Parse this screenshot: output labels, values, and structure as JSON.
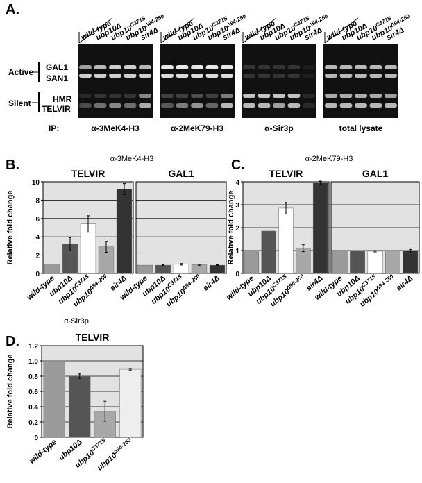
{
  "panel_a": {
    "label": "A.",
    "lanes": [
      "wild-type",
      "ubp10Δ",
      "ubp10",
      "ubp10",
      "sir4Δ"
    ],
    "lane_superscripts": [
      null,
      null,
      "C371S",
      "Δ94-250",
      null
    ],
    "bands": [
      "GAL1",
      "SAN1",
      "HMR",
      "TELVIR"
    ],
    "groups": [
      "Active",
      "Silent"
    ],
    "ip_label": "IP:",
    "ip_names": [
      "α-3MeK4-H3",
      "α-2MeK79-H3",
      "α-Sir3p",
      "total lysate"
    ]
  },
  "chart_data": [
    {
      "type": "bar",
      "label": "B.",
      "title": "α-3MeK4-H3",
      "y_label": "Relative fold change",
      "ylim": [
        0,
        10
      ],
      "yticks": [
        0,
        2,
        4,
        6,
        8,
        10
      ],
      "grid": true,
      "panels": [
        {
          "title": "TELVIR",
          "categories": [
            "wild-type",
            "ubp10Δ",
            "ubp10",
            "ubp10",
            "sir4Δ"
          ],
          "category_superscripts": [
            null,
            null,
            "C371S",
            "Δ94-250",
            null
          ],
          "values": [
            1,
            3.2,
            5.4,
            2.9,
            9.2
          ],
          "errors": [
            null,
            0.7,
            0.9,
            0.6,
            0.6
          ],
          "colors": [
            "#9a9a9a",
            "#555555",
            "#ffffff",
            "#a8a8a8",
            "#333333"
          ]
        },
        {
          "title": "GAL1",
          "categories": [
            "wild-type",
            "ubp10Δ",
            "ubp10",
            "ubp10",
            "sir4Δ"
          ],
          "category_superscripts": [
            null,
            null,
            "C371S",
            "Δ94-250",
            null
          ],
          "values": [
            0.9,
            0.9,
            1.0,
            0.95,
            0.9
          ],
          "errors": [
            null,
            0.05,
            0.08,
            0.06,
            0.05
          ],
          "colors": [
            "#9a9a9a",
            "#555555",
            "#ffffff",
            "#a8a8a8",
            "#333333"
          ]
        }
      ]
    },
    {
      "type": "bar",
      "label": "C.",
      "title": "α-2MeK79-H3",
      "y_label": "Relative fold change",
      "ylim": [
        0,
        4
      ],
      "yticks": [
        0,
        1,
        2,
        3,
        4
      ],
      "grid": true,
      "panels": [
        {
          "title": "TELVIR",
          "categories": [
            "wild-type",
            "ubp10Δ",
            "ubp10",
            "ubp10",
            "sir4Δ"
          ],
          "category_superscripts": [
            null,
            null,
            "C371S",
            "Δ94-250",
            null
          ],
          "values": [
            1,
            1.85,
            2.85,
            1.1,
            3.95
          ],
          "errors": [
            null,
            null,
            0.25,
            0.15,
            0.08
          ],
          "colors": [
            "#9a9a9a",
            "#555555",
            "#ffffff",
            "#a8a8a8",
            "#333333"
          ]
        },
        {
          "title": "GAL1",
          "categories": [
            "wild-type",
            "ubp10Δ",
            "ubp10",
            "ubp10",
            "sir4Δ"
          ],
          "category_superscripts": [
            null,
            null,
            "C371S",
            "Δ94-250",
            null
          ],
          "values": [
            1,
            1,
            0.97,
            1,
            1
          ],
          "errors": [
            null,
            null,
            0.03,
            null,
            0.05
          ],
          "colors": [
            "#9a9a9a",
            "#555555",
            "#ffffff",
            "#a8a8a8",
            "#333333"
          ]
        }
      ]
    },
    {
      "type": "bar",
      "label": "D.",
      "title": "α-Sir3p",
      "y_label": "Relative fold change",
      "ylim": [
        0,
        1.2
      ],
      "yticks": [
        0,
        0.2,
        0.4,
        0.6,
        0.8,
        {
          "value": 1,
          "label": "1.0"
        },
        1.2
      ],
      "grid": true,
      "panels": [
        {
          "title": "TELVIR",
          "categories": [
            "wild-type",
            "ubp10Δ",
            "ubp10",
            "ubp10"
          ],
          "category_superscripts": [
            null,
            null,
            "C371S",
            "Δ94-250"
          ],
          "values": [
            1.0,
            0.8,
            0.34,
            0.89
          ],
          "errors": [
            null,
            0.03,
            0.13,
            0.01
          ],
          "colors": [
            "#9a9a9a",
            "#555555",
            "#a8a8a8",
            "#eeeeee"
          ]
        }
      ]
    }
  ]
}
